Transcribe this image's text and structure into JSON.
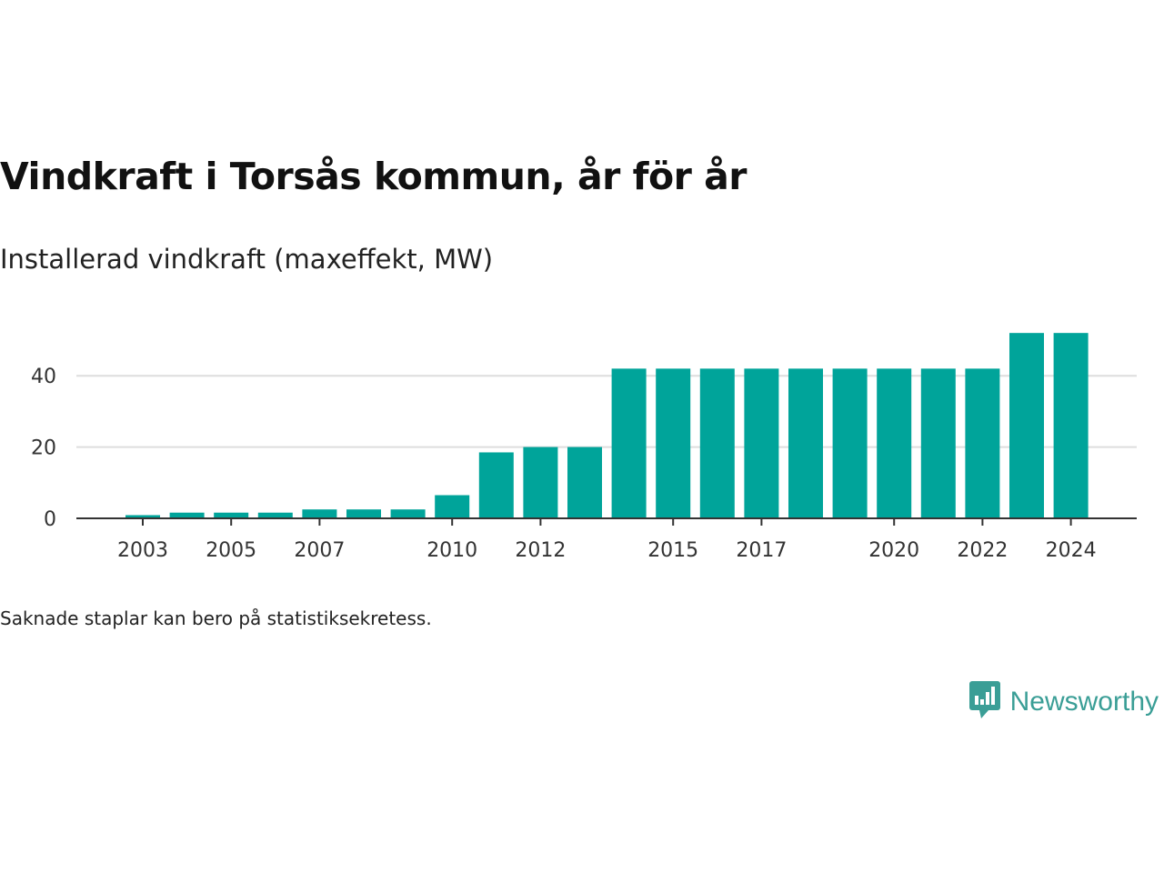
{
  "title": "Vindkraft i Torsås kommun, år för år",
  "subtitle": "Installerad vindkraft (maxeffekt, MW)",
  "footnote": "Saknade staplar kan bero på statistiksekretess.",
  "brand": {
    "name": "Newsworthy",
    "icon": "newsworthy-logo-icon"
  },
  "colors": {
    "bar": "#00a49a",
    "grid": "#dddddd",
    "axis": "#333333",
    "brand": "#3a9e96"
  },
  "chart_data": {
    "type": "bar",
    "categories": [
      "2003",
      "2004",
      "2005",
      "2006",
      "2007",
      "2008",
      "2009",
      "2010",
      "2011",
      "2012",
      "2013",
      "2014",
      "2015",
      "2016",
      "2017",
      "2018",
      "2019",
      "2020",
      "2021",
      "2022",
      "2023",
      "2024"
    ],
    "values": [
      0.9,
      1.6,
      1.6,
      1.6,
      2.5,
      2.5,
      2.5,
      6.5,
      18.5,
      20,
      20,
      42,
      42,
      42,
      42,
      42,
      42,
      42,
      42,
      42,
      52,
      52
    ],
    "xticks": [
      "2003",
      "2005",
      "2007",
      "2010",
      "2012",
      "2015",
      "2017",
      "2020",
      "2022",
      "2024"
    ],
    "yticks": [
      0,
      20,
      40
    ],
    "ylim": [
      0,
      52
    ],
    "xlabel": "",
    "ylabel": "",
    "grid": true
  }
}
